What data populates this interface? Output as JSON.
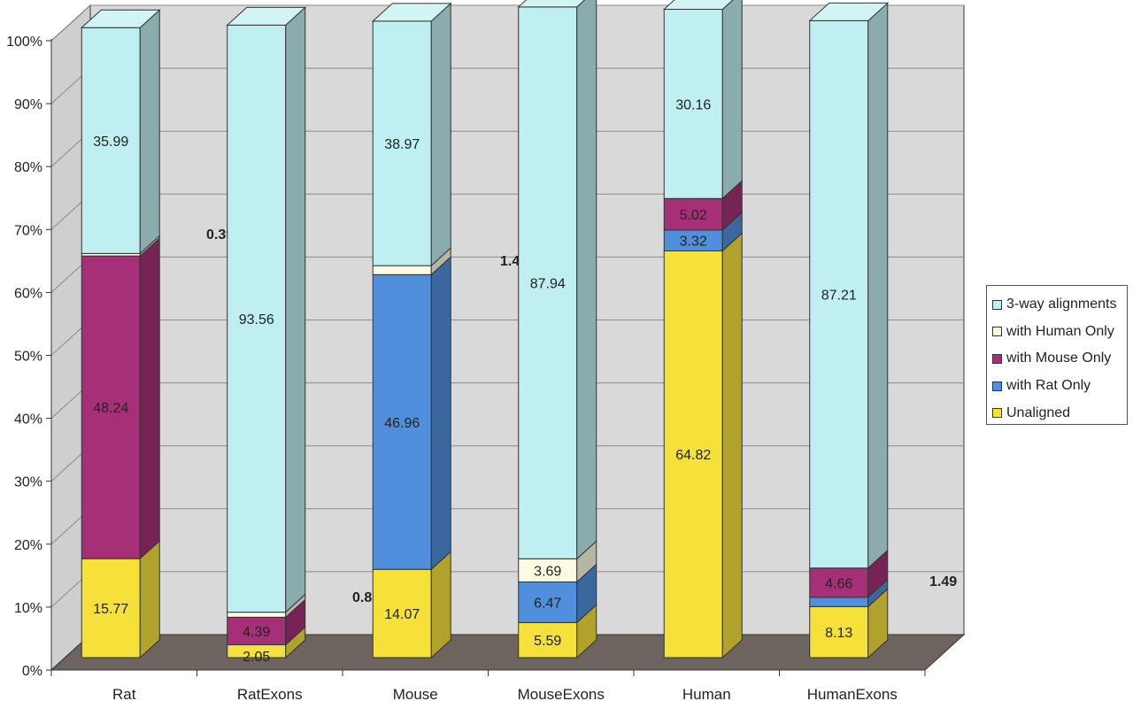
{
  "chart_data": {
    "type": "bar",
    "stacked": true,
    "three_d": true,
    "categories": [
      "Rat",
      "RatExons",
      "Mouse",
      "MouseExons",
      "Human",
      "HumanExons"
    ],
    "y_ticks": [
      "0%",
      "10%",
      "20%",
      "30%",
      "40%",
      "50%",
      "60%",
      "70%",
      "80%",
      "90%",
      "100%"
    ],
    "ylim": [
      0,
      100
    ],
    "grid": true,
    "legend_position": "right",
    "series": [
      {
        "name": "Unaligned",
        "color": "#f5e13a",
        "values": [
          15.77,
          2.05,
          14.07,
          5.59,
          64.82,
          8.13
        ]
      },
      {
        "name": "with Rat Only",
        "color": "#4f8fdc",
        "values": [
          0,
          0,
          46.96,
          6.47,
          3.32,
          1.49
        ]
      },
      {
        "name": "with Mouse Only",
        "color": "#a63078",
        "values": [
          48.24,
          4.39,
          0,
          0,
          5.02,
          4.66
        ]
      },
      {
        "name": "with Human Only",
        "color": "#fefbe4",
        "values": [
          0.39,
          0.8,
          1.43,
          3.69,
          0,
          0
        ]
      },
      {
        "name": "3-way alignments",
        "color": "#bfeff0",
        "values": [
          35.99,
          93.56,
          38.97,
          87.94,
          30.16,
          87.21
        ]
      }
    ],
    "data_labels": [
      [
        "15.77",
        "",
        "48.24",
        "0.39",
        "35.99"
      ],
      [
        "2.05",
        "",
        "4.39",
        "0.8",
        "93.56"
      ],
      [
        "14.07",
        "46.96",
        "",
        "1.43",
        "38.97"
      ],
      [
        "5.59",
        "6.47",
        "",
        "3.69",
        "87.94"
      ],
      [
        "64.82",
        "3.32",
        "5.02",
        "",
        "30.16"
      ],
      [
        "8.13",
        "1.49",
        "4.66",
        "",
        "87.21"
      ]
    ]
  },
  "legend": {
    "items": [
      {
        "label": "3-way alignments",
        "color": "#bfeff0"
      },
      {
        "label": "with Human Only",
        "color": "#fefbe4"
      },
      {
        "label": "with Mouse Only",
        "color": "#a63078"
      },
      {
        "label": "with Rat Only",
        "color": "#4f8fdc"
      },
      {
        "label": "Unaligned",
        "color": "#f5e13a"
      }
    ]
  },
  "colors": {
    "back_wall": "#d9d9d9",
    "floor": "#6d6460",
    "grid": "#8a8a8a",
    "outline": "#333333"
  }
}
